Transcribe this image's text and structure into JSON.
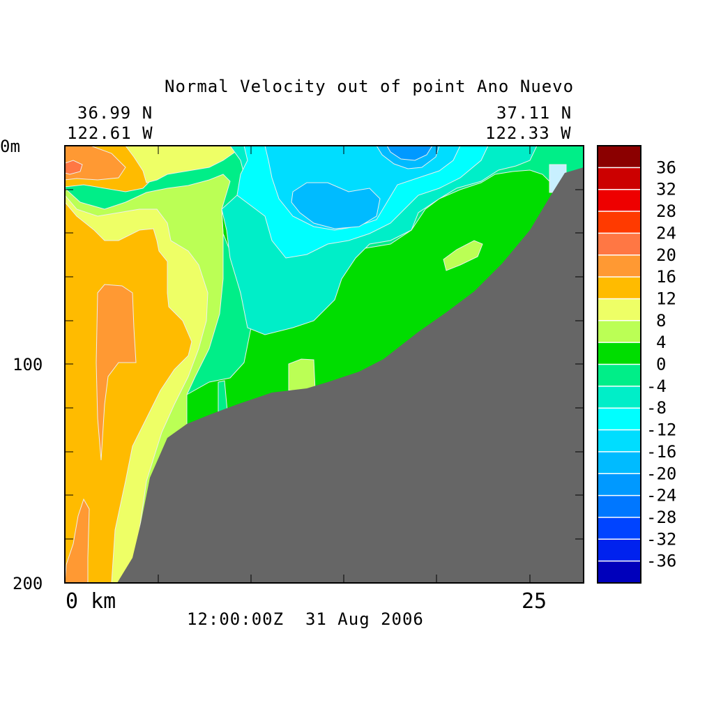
{
  "chart_data": {
    "type": "heatmap",
    "subtype": "filled-contour depth section",
    "title": "Normal Velocity out of point Ano Nuevo",
    "start_point": {
      "lat": "36.99 N",
      "lon": "122.61 W"
    },
    "end_point": {
      "lat": "37.11 N",
      "lon": "122.33 W"
    },
    "x_ticks": [
      "0 km",
      "25"
    ],
    "x_range_km": [
      0,
      28
    ],
    "y_ticks": [
      "0m",
      "100",
      "200"
    ],
    "y_range_m": [
      0,
      200
    ],
    "timestamp": "12:00:00Z  31 Aug 2006",
    "colorbar": {
      "levels": [
        -40,
        -36,
        -32,
        -28,
        -24,
        -20,
        -16,
        -12,
        -8,
        -4,
        0,
        4,
        8,
        12,
        16,
        20,
        24,
        28,
        32,
        36,
        40
      ],
      "labels": [
        "36",
        "32",
        "28",
        "24",
        "20",
        "16",
        "12",
        "8",
        "4",
        "0",
        "-4",
        "-8",
        "-12",
        "-16",
        "-20",
        "-24",
        "-28",
        "-32",
        "-36"
      ],
      "colors_top_to_bottom": [
        "#8b0000",
        "#cc0000",
        "#ee0000",
        "#ff3a00",
        "#ff7744",
        "#ff9933",
        "#ffbb00",
        "#eeff66",
        "#bbff55",
        "#00dd00",
        "#00ee88",
        "#00eec8",
        "#00ffff",
        "#00ddff",
        "#00bbff",
        "#0099ff",
        "#0077ff",
        "#0044ff",
        "#0022ee",
        "#0000bb"
      ]
    },
    "regions": [
      {
        "value_range": [
          16,
          20
        ],
        "location": "near-surface inshore, around 0-2 km"
      },
      {
        "value_range": [
          12,
          16
        ],
        "location": "inshore column 0-6 km, surface to bottom"
      },
      {
        "value_range": [
          16,
          20
        ],
        "location": "inshore core ~2-4 km, 80-170 m"
      },
      {
        "value_range": [
          8,
          12
        ],
        "location": "band around inshore maximum"
      },
      {
        "value_range": [
          4,
          8
        ],
        "location": "transition band ~5-8 km"
      },
      {
        "value_range": [
          0,
          4
        ],
        "location": "mid-section ~7-25 km, 20-150 m"
      },
      {
        "value_range": [
          -4,
          0
        ],
        "location": "upper layer ~8-26 km"
      },
      {
        "value_range": [
          -8,
          -4
        ],
        "location": "upper core ~10-20 km, 0-80 m"
      },
      {
        "value_range": [
          -12,
          -8
        ],
        "location": "core ~10-20 km, 10-60 m"
      },
      {
        "value_range": [
          -20,
          -16
        ],
        "location": "core ~12-16 km, 20-40 m and surface near 18 km"
      }
    ],
    "bathymetry_color": "#666666"
  }
}
